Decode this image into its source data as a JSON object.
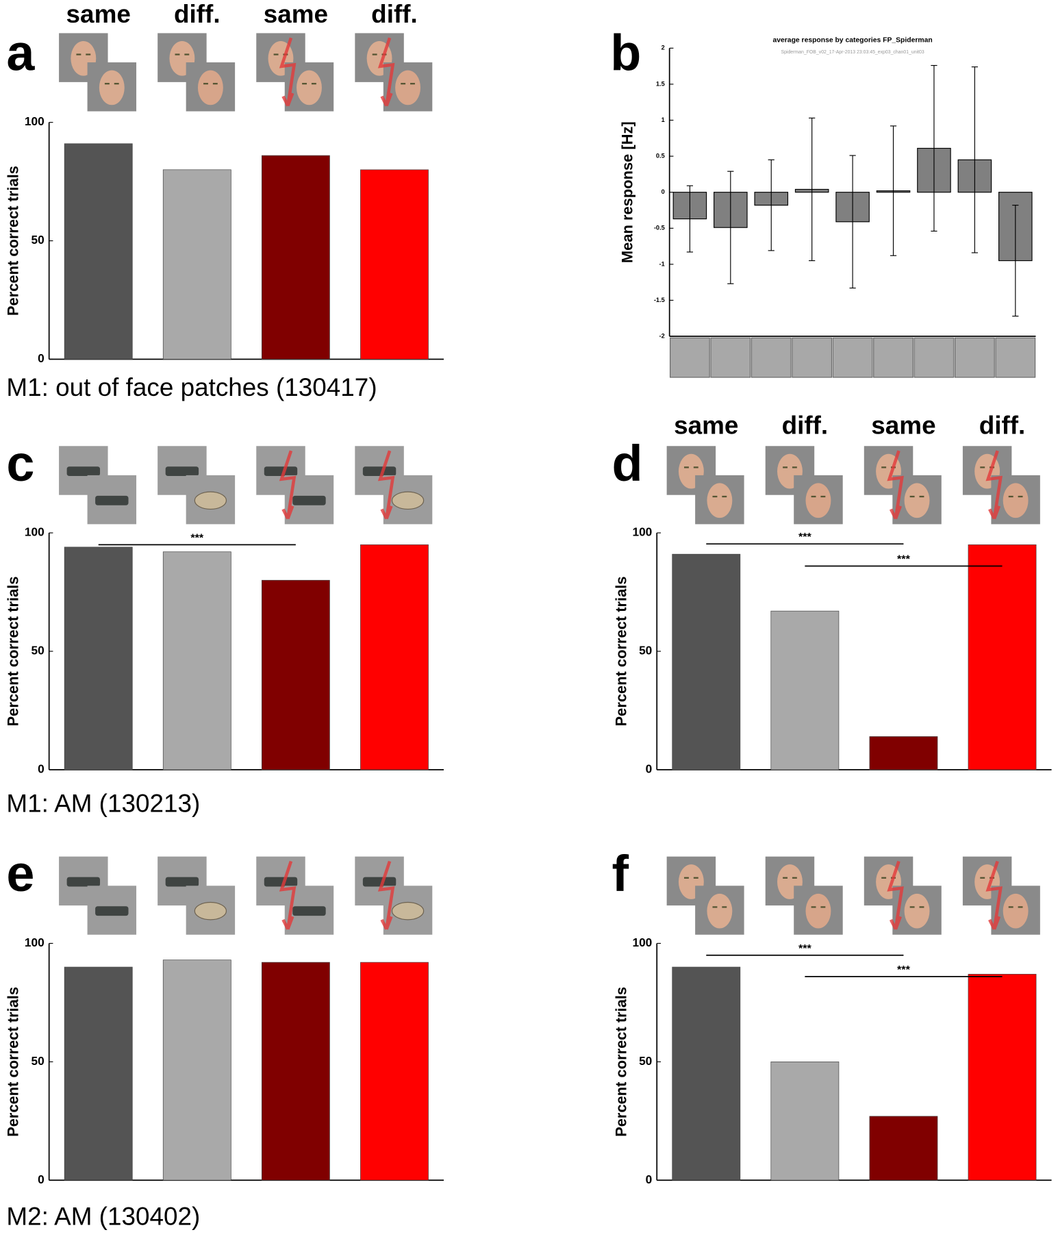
{
  "chart_data": [
    {
      "type": "bar",
      "panel": "a",
      "categories": [
        "same",
        "diff.",
        "same",
        "diff."
      ],
      "values": [
        91,
        80,
        86,
        80
      ],
      "colors": [
        "#545454",
        "#a9a9a9",
        "#800000",
        "#ff0000"
      ],
      "y_label": "Percent correct trials",
      "ylim": [
        0,
        100
      ],
      "yticks": [
        0,
        50,
        100
      ],
      "caption": "M1: out of face patches (130417)"
    },
    {
      "type": "errorbar",
      "panel": "b",
      "title": "average response by categories FP_Spiderman",
      "subtitle": "Spiderman_FOB_v02_17-Apr-2013 23:03:45_exp03_chan01_unit03",
      "y_label": "Mean response [Hz]",
      "categories": [
        null,
        null,
        null,
        null,
        null,
        null,
        null,
        null,
        null
      ],
      "values": [
        -0.37,
        -0.49,
        -0.18,
        0.04,
        -0.41,
        0.02,
        0.61,
        0.45,
        -0.95
      ],
      "errors": [
        0.46,
        0.78,
        0.63,
        0.99,
        0.92,
        0.9,
        1.15,
        1.29,
        0.77
      ],
      "color": "#808080",
      "ylim": [
        -2,
        2
      ],
      "yticks": [
        -2,
        -1.5,
        -1,
        -0.5,
        0,
        0.5,
        1,
        1.5,
        2
      ]
    },
    {
      "type": "bar",
      "panel": "c",
      "categories": [
        null,
        null,
        null,
        null
      ],
      "values": [
        94,
        92,
        80,
        95
      ],
      "colors": [
        "#545454",
        "#a9a9a9",
        "#800000",
        "#ff0000"
      ],
      "y_label": "Percent correct trials",
      "ylim": [
        0,
        100
      ],
      "yticks": [
        0,
        50,
        100
      ],
      "annotations": [
        "***"
      ],
      "caption": "M1: AM (130213)"
    },
    {
      "type": "bar",
      "panel": "d",
      "categories": [
        "same",
        "diff.",
        "same",
        "diff."
      ],
      "values": [
        91,
        67,
        14,
        95
      ],
      "colors": [
        "#545454",
        "#a9a9a9",
        "#800000",
        "#ff0000"
      ],
      "y_label": "Percent correct trials",
      "ylim": [
        0,
        100
      ],
      "yticks": [
        0,
        50,
        100
      ],
      "annotations": [
        "***",
        "***"
      ]
    },
    {
      "type": "bar",
      "panel": "e",
      "categories": [
        null,
        null,
        null,
        null
      ],
      "values": [
        90,
        93,
        92,
        92
      ],
      "colors": [
        "#545454",
        "#a9a9a9",
        "#800000",
        "#ff0000"
      ],
      "y_label": "Percent correct trials",
      "ylim": [
        0,
        100
      ],
      "yticks": [
        0,
        50,
        100
      ],
      "caption": "M2: AM (130402)"
    },
    {
      "type": "bar",
      "panel": "f",
      "categories": [
        null,
        null,
        null,
        null
      ],
      "values": [
        90,
        50,
        27,
        87
      ],
      "colors": [
        "#545454",
        "#a9a9a9",
        "#800000",
        "#ff0000"
      ],
      "y_label": "Percent correct trials",
      "ylim": [
        0,
        100
      ],
      "yticks": [
        0,
        50,
        100
      ],
      "annotations": [
        "***",
        "***"
      ]
    }
  ]
}
